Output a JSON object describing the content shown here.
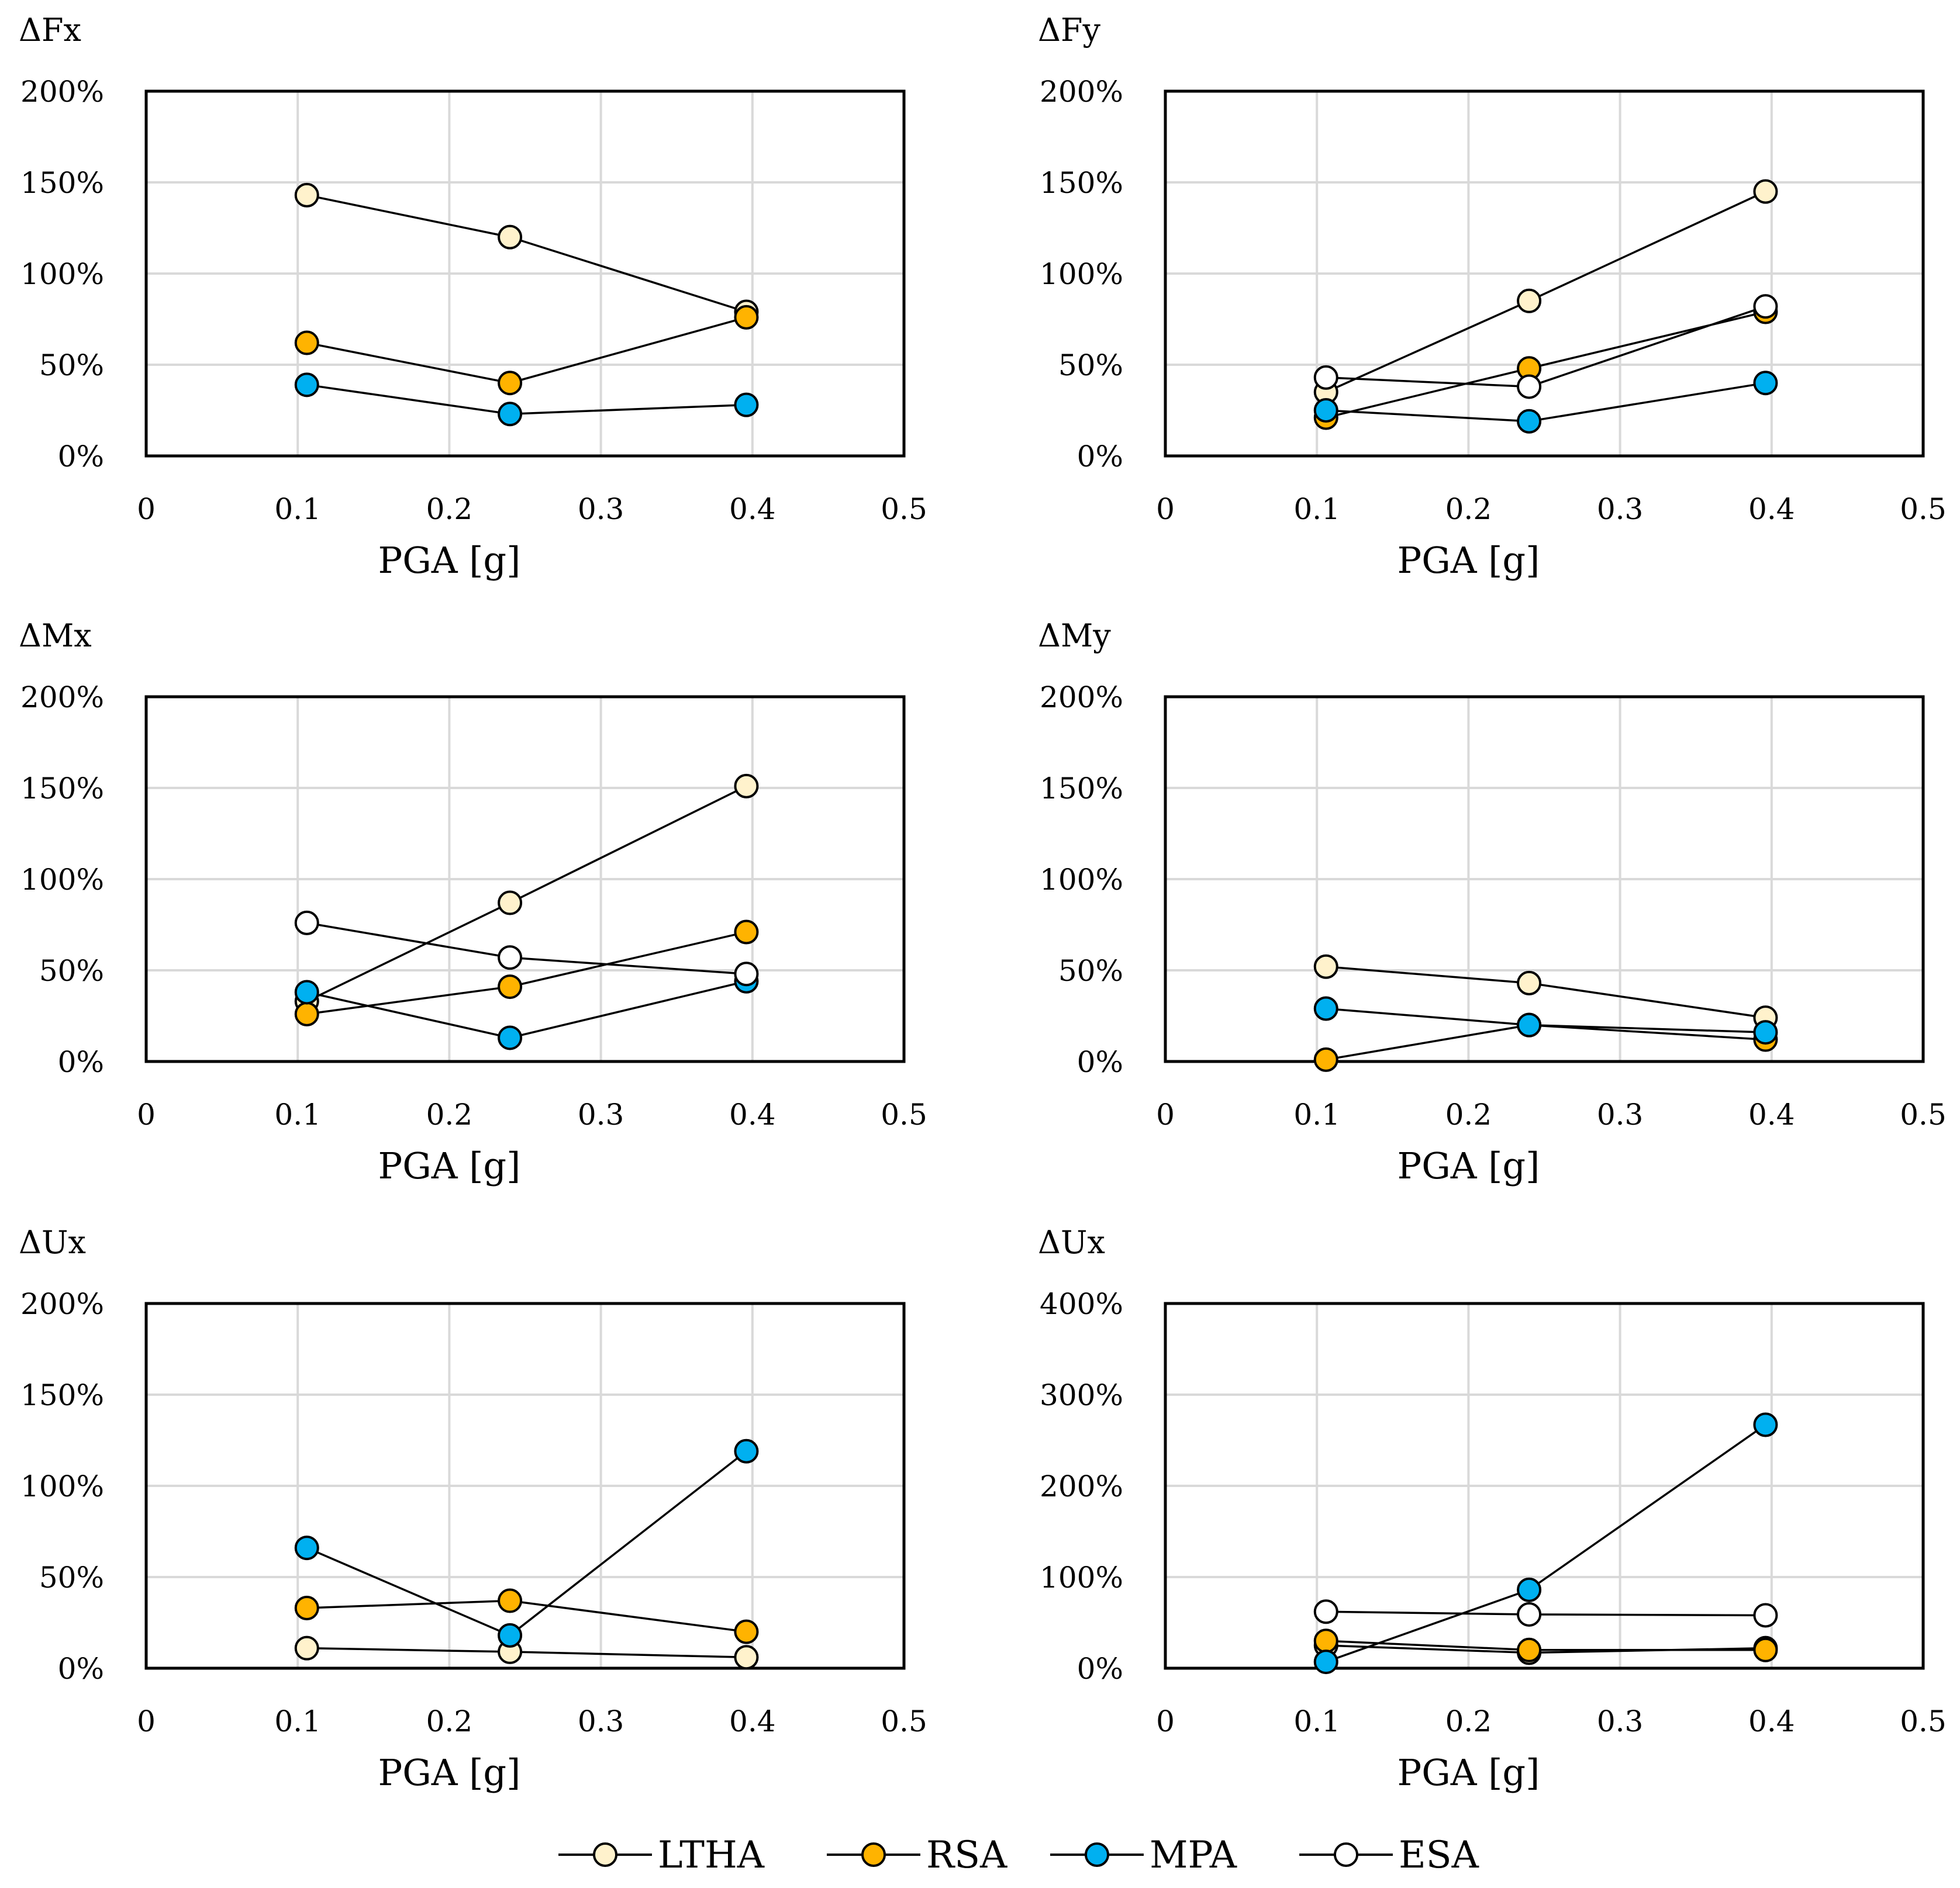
{
  "series_styles": [
    {
      "key": "LTHA",
      "fill": "#FFF2CC"
    },
    {
      "key": "RSA",
      "fill": "#FFB300"
    },
    {
      "key": "MPA",
      "fill": "#00B0F0"
    },
    {
      "key": "ESA",
      "fill": "#FFFFFF"
    }
  ],
  "legend": [
    "LTHA",
    "RSA",
    "MPA",
    "ESA"
  ],
  "chart_data": [
    {
      "type": "line",
      "title": "ΔFx",
      "xlabel": "PGA [g]",
      "xlim": [
        0,
        0.5
      ],
      "xticks": [
        "0",
        "0.1",
        "0.2",
        "0.3",
        "0.4",
        "0.5"
      ],
      "ylim": [
        0,
        200
      ],
      "yticks": [
        "0%",
        "50%",
        "100%",
        "150%",
        "200%"
      ],
      "x": [
        0.106,
        0.24,
        0.396
      ],
      "series": [
        {
          "name": "LTHA",
          "values": [
            143,
            120,
            79
          ]
        },
        {
          "name": "RSA",
          "values": [
            62,
            40,
            76
          ]
        },
        {
          "name": "MPA",
          "values": [
            39,
            23,
            28
          ]
        }
      ]
    },
    {
      "type": "line",
      "title": "ΔFy",
      "xlabel": "PGA [g]",
      "xlim": [
        0,
        0.5
      ],
      "xticks": [
        "0",
        "0.1",
        "0.2",
        "0.3",
        "0.4",
        "0.5"
      ],
      "ylim": [
        0,
        200
      ],
      "yticks": [
        "0%",
        "50%",
        "100%",
        "150%",
        "200%"
      ],
      "x": [
        0.106,
        0.24,
        0.396
      ],
      "series": [
        {
          "name": "LTHA",
          "values": [
            35,
            85,
            145
          ]
        },
        {
          "name": "RSA",
          "values": [
            21,
            48,
            79
          ]
        },
        {
          "name": "MPA",
          "values": [
            25,
            19,
            40
          ]
        },
        {
          "name": "ESA",
          "values": [
            43,
            38,
            82
          ]
        }
      ]
    },
    {
      "type": "line",
      "title": "ΔMx",
      "xlabel": "PGA [g]",
      "xlim": [
        0,
        0.5
      ],
      "xticks": [
        "0",
        "0.1",
        "0.2",
        "0.3",
        "0.4",
        "0.5"
      ],
      "ylim": [
        0,
        200
      ],
      "yticks": [
        "0%",
        "50%",
        "100%",
        "150%",
        "200%"
      ],
      "x": [
        0.106,
        0.24,
        0.396
      ],
      "series": [
        {
          "name": "LTHA",
          "values": [
            33,
            87,
            151
          ]
        },
        {
          "name": "RSA",
          "values": [
            26,
            41,
            71
          ]
        },
        {
          "name": "MPA",
          "values": [
            38,
            13,
            44
          ]
        },
        {
          "name": "ESA",
          "values": [
            76,
            57,
            48
          ]
        }
      ]
    },
    {
      "type": "line",
      "title": "ΔMy",
      "xlabel": "PGA [g]",
      "xlim": [
        0,
        0.5
      ],
      "xticks": [
        "0",
        "0.1",
        "0.2",
        "0.3",
        "0.4",
        "0.5"
      ],
      "ylim": [
        0,
        200
      ],
      "yticks": [
        "0%",
        "50%",
        "100%",
        "150%",
        "200%"
      ],
      "x": [
        0.106,
        0.24,
        0.396
      ],
      "series": [
        {
          "name": "LTHA",
          "values": [
            52,
            43,
            24
          ]
        },
        {
          "name": "RSA",
          "values": [
            1,
            20,
            12
          ]
        },
        {
          "name": "MPA",
          "values": [
            29,
            20,
            16
          ]
        }
      ]
    },
    {
      "type": "line",
      "title": "ΔUx",
      "xlabel": "PGA [g]",
      "xlim": [
        0,
        0.5
      ],
      "xticks": [
        "0",
        "0.1",
        "0.2",
        "0.3",
        "0.4",
        "0.5"
      ],
      "ylim": [
        0,
        200
      ],
      "yticks": [
        "0%",
        "50%",
        "100%",
        "150%",
        "200%"
      ],
      "x": [
        0.106,
        0.24,
        0.396
      ],
      "series": [
        {
          "name": "LTHA",
          "values": [
            11,
            9,
            6
          ]
        },
        {
          "name": "RSA",
          "values": [
            33,
            37,
            20
          ]
        },
        {
          "name": "MPA",
          "values": [
            66,
            18,
            119
          ]
        }
      ]
    },
    {
      "type": "line",
      "title": "ΔUx",
      "xlabel": "PGA [g]",
      "xlim": [
        0,
        0.5
      ],
      "xticks": [
        "0",
        "0.1",
        "0.2",
        "0.3",
        "0.4",
        "0.5"
      ],
      "ylim": [
        0,
        400
      ],
      "yticks": [
        "0%",
        "100%",
        "200%",
        "300%",
        "400%"
      ],
      "x": [
        0.106,
        0.24,
        0.396
      ],
      "series": [
        {
          "name": "LTHA",
          "values": [
            25,
            17,
            22
          ]
        },
        {
          "name": "RSA",
          "values": [
            30,
            20,
            20
          ]
        },
        {
          "name": "MPA",
          "values": [
            7,
            86,
            267
          ]
        },
        {
          "name": "ESA",
          "values": [
            62,
            59,
            58
          ]
        }
      ]
    }
  ]
}
